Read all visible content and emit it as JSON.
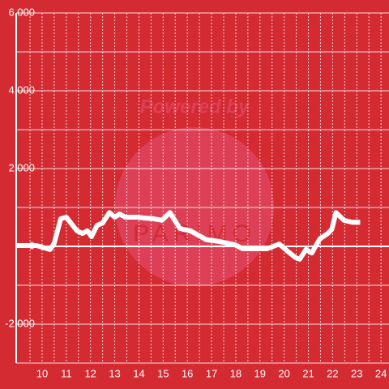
{
  "chart_data": {
    "type": "line",
    "watermark": [
      "Powered by",
      "PARIMO"
    ],
    "x": [
      8.93,
      9.77,
      10.0,
      10.33,
      10.5,
      10.77,
      11.0,
      11.44,
      11.67,
      11.87,
      12.04,
      12.27,
      12.5,
      12.78,
      13.0,
      13.2,
      13.44,
      13.94,
      14.2,
      14.6,
      14.95,
      15.28,
      15.69,
      16.12,
      16.79,
      17.29,
      17.96,
      18.29,
      19.3,
      19.8,
      20.13,
      20.47,
      20.64,
      20.9,
      21.14,
      21.47,
      21.8,
      21.97,
      22.14,
      22.47,
      22.81,
      23.14
    ],
    "series": [
      {
        "color": "#ffffff",
        "values": [
          20,
          20,
          -20,
          -80,
          80,
          710,
          750,
          400,
          330,
          400,
          250,
          540,
          600,
          870,
          750,
          830,
          750,
          750,
          730,
          710,
          670,
          870,
          460,
          400,
          170,
          130,
          40,
          -60,
          -60,
          60,
          -120,
          -290,
          -330,
          -80,
          -170,
          190,
          330,
          440,
          870,
          670,
          620,
          620
        ]
      }
    ],
    "xlim": [
      8.93,
      24.33
    ],
    "xticks": [
      10,
      11,
      12,
      13,
      14,
      15,
      16,
      17,
      18,
      19,
      20,
      21,
      22,
      23,
      24
    ],
    "ylim": [
      -3000,
      6000
    ],
    "yticks": [
      {
        "value": -2000,
        "label": "-2,000"
      },
      0,
      {
        "value": 2000,
        "label": "2,000"
      },
      {
        "value": 4000,
        "label": "4,000"
      },
      {
        "value": 6000,
        "label": "6,000"
      }
    ],
    "grid": true,
    "background": "#d42a32"
  }
}
